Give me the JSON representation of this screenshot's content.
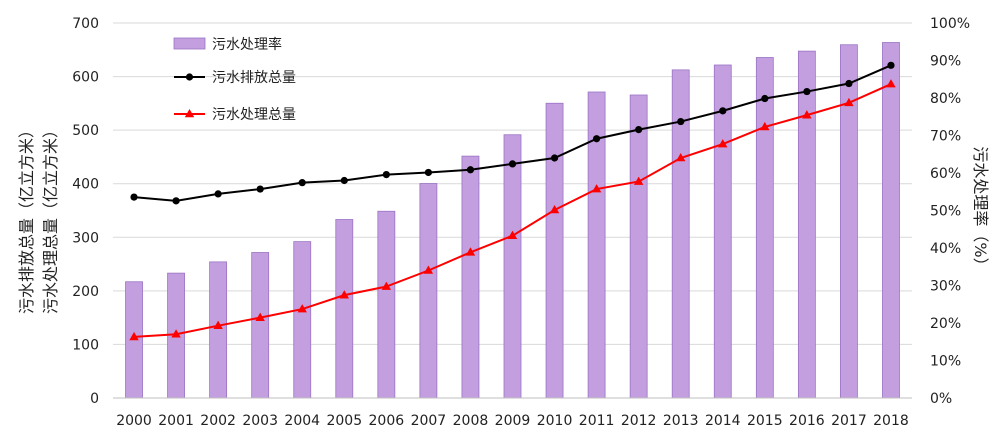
{
  "chart_data": {
    "type": "bar",
    "categories": [
      "2000",
      "2001",
      "2002",
      "2003",
      "2004",
      "2005",
      "2006",
      "2007",
      "2008",
      "2009",
      "2010",
      "2011",
      "2012",
      "2013",
      "2014",
      "2015",
      "2016",
      "2017",
      "2018"
    ],
    "series": [
      {
        "name": "污水处理率",
        "type": "bar",
        "axis": "right",
        "color": "#c39fe0",
        "values": [
          31,
          33.3,
          36.3,
          38.8,
          41.7,
          47.6,
          49.8,
          57.2,
          64.5,
          70.2,
          78.6,
          81.6,
          80.8,
          87.5,
          88.8,
          90.8,
          92.5,
          94.2,
          94.8
        ]
      },
      {
        "name": "污水排放总量",
        "type": "line",
        "axis": "left",
        "color": "#000000",
        "marker": "circle",
        "values": [
          375,
          368,
          381,
          390,
          402,
          406,
          417,
          421,
          426,
          437,
          448,
          484,
          501,
          516,
          536,
          559,
          572,
          587,
          621
        ]
      },
      {
        "name": "污水处理总量",
        "type": "line",
        "axis": "left",
        "color": "#ff0000",
        "marker": "triangle",
        "values": [
          114,
          119,
          135,
          150,
          166,
          192,
          208,
          238,
          272,
          303,
          351,
          390,
          404,
          448,
          474,
          506,
          528,
          551,
          586
        ]
      }
    ],
    "y_left": {
      "label_lines": [
        "污水排放总量（亿立方米）",
        "污水处理总量（亿立方米）"
      ],
      "min": 0,
      "max": 700,
      "ticks": [
        "0",
        "100",
        "200",
        "300",
        "400",
        "500",
        "600",
        "700"
      ]
    },
    "y_right": {
      "label": "污水处理率（%）",
      "min": 0,
      "max": 100,
      "ticks": [
        "0%",
        "10%",
        "20%",
        "30%",
        "40%",
        "50%",
        "60%",
        "70%",
        "80%",
        "90%",
        "100%"
      ]
    },
    "grid": true,
    "legend_position": "top-left"
  }
}
